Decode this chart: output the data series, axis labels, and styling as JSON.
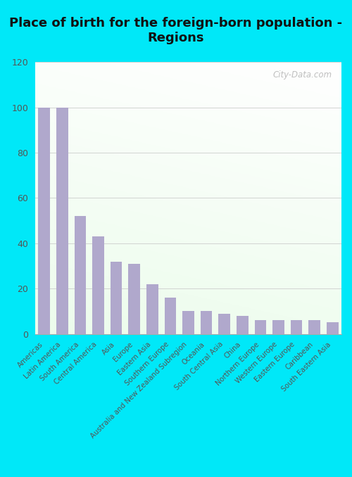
{
  "title": "Place of birth for the foreign-born population -\nRegions",
  "categories": [
    "Americas",
    "Latin America",
    "South America",
    "Central America",
    "Asia",
    "Europe",
    "Eastern Asia",
    "Southern Europe",
    "Australia and New Zealand Subregion",
    "Oceania",
    "South Central Asia",
    "China",
    "Northern Europe",
    "Western Europe",
    "Eastern Europe",
    "Caribbean",
    "South Eastern Asia"
  ],
  "values": [
    100,
    100,
    52,
    43,
    32,
    31,
    22,
    16,
    10,
    10,
    9,
    8,
    6,
    6,
    6,
    6,
    5
  ],
  "bar_color": "#b0a8cc",
  "ylim": [
    0,
    120
  ],
  "yticks": [
    0,
    20,
    40,
    60,
    80,
    100,
    120
  ],
  "outer_bg": "#00e8f8",
  "title_fontsize": 13,
  "watermark": "City-Data.com"
}
